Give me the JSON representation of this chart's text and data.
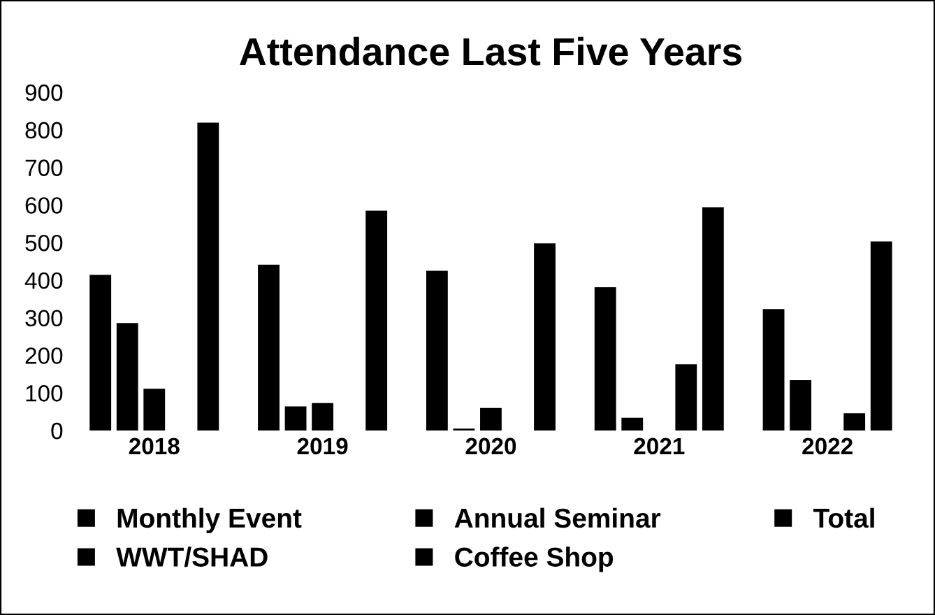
{
  "chart_data": {
    "type": "bar",
    "title": "Attendance Last Five Years",
    "categories": [
      "2018",
      "2019",
      "2020",
      "2021",
      "2022"
    ],
    "series": [
      {
        "name": "Monthly Event",
        "color": "#000000",
        "values": [
          414,
          441,
          425,
          381,
          323
        ]
      },
      {
        "name": "WWT/SHAD",
        "color": "#000000",
        "values": [
          286,
          64,
          5,
          34,
          134
        ]
      },
      {
        "name": "Annual Seminar",
        "color": "#000000",
        "values": [
          111,
          73,
          60,
          0,
          0
        ]
      },
      {
        "name": "Coffee Shop",
        "color": "#000000",
        "values": [
          0,
          0,
          0,
          176,
          46
        ]
      },
      {
        "name": "Total",
        "color": "#000000",
        "values": [
          819,
          585,
          498,
          594,
          503
        ]
      }
    ],
    "ylim": [
      0,
      900
    ],
    "yticks": [
      0,
      100,
      200,
      300,
      400,
      500,
      600,
      700,
      800,
      900
    ],
    "grid": false,
    "legend": "bottom"
  }
}
